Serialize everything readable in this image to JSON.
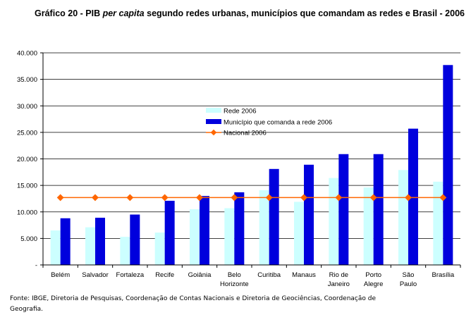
{
  "title": {
    "prefix": "Gráfico 20 - PIB ",
    "italic": "per capita",
    "suffix": " segundo redes urbanas, municípios que comandam as redes e Brasil - 2006"
  },
  "source": "Fonte: IBGE, Diretoria de Pesquisas, Coordenação de Contas Nacionais e Diretoria de Geociências, Coordenação de Geografia.",
  "colors": {
    "rede": "#ccffff",
    "municipio": "#0000dd",
    "nacional": "#ff6600",
    "grid": "#000000"
  },
  "chart_data": {
    "type": "bar",
    "categories": [
      [
        "Belém"
      ],
      [
        "Salvador"
      ],
      [
        "Fortaleza"
      ],
      [
        "Recife"
      ],
      [
        "Goiânia"
      ],
      [
        "Belo",
        "Horizonte"
      ],
      [
        "Curitiba"
      ],
      [
        "Manaus"
      ],
      [
        "Rio de",
        "Janeiro"
      ],
      [
        "Porto",
        "Alegre"
      ],
      [
        "São",
        "Paulo"
      ],
      [
        "Brasília"
      ]
    ],
    "series": [
      {
        "name": "Rede 2006",
        "type": "bar",
        "values": [
          6500,
          7100,
          5300,
          6100,
          10500,
          10700,
          14100,
          11900,
          16400,
          14600,
          17900,
          15700
        ]
      },
      {
        "name": "Município que comanda a rede 2006",
        "type": "bar",
        "values": [
          8800,
          8900,
          9500,
          12100,
          13000,
          13700,
          18100,
          18900,
          20900,
          20900,
          25700,
          37700
        ]
      },
      {
        "name": "Nacional 2006",
        "type": "line",
        "values": [
          12700,
          12700,
          12700,
          12700,
          12700,
          12700,
          12700,
          12700,
          12700,
          12700,
          12700,
          12700
        ]
      }
    ],
    "ylim": [
      0,
      40000
    ],
    "yticks": [
      "-",
      "5.000",
      "10.000",
      "15.000",
      "20.000",
      "25.000",
      "30.000",
      "35.000",
      "40.000"
    ],
    "grid": true,
    "legend_position": "center"
  }
}
